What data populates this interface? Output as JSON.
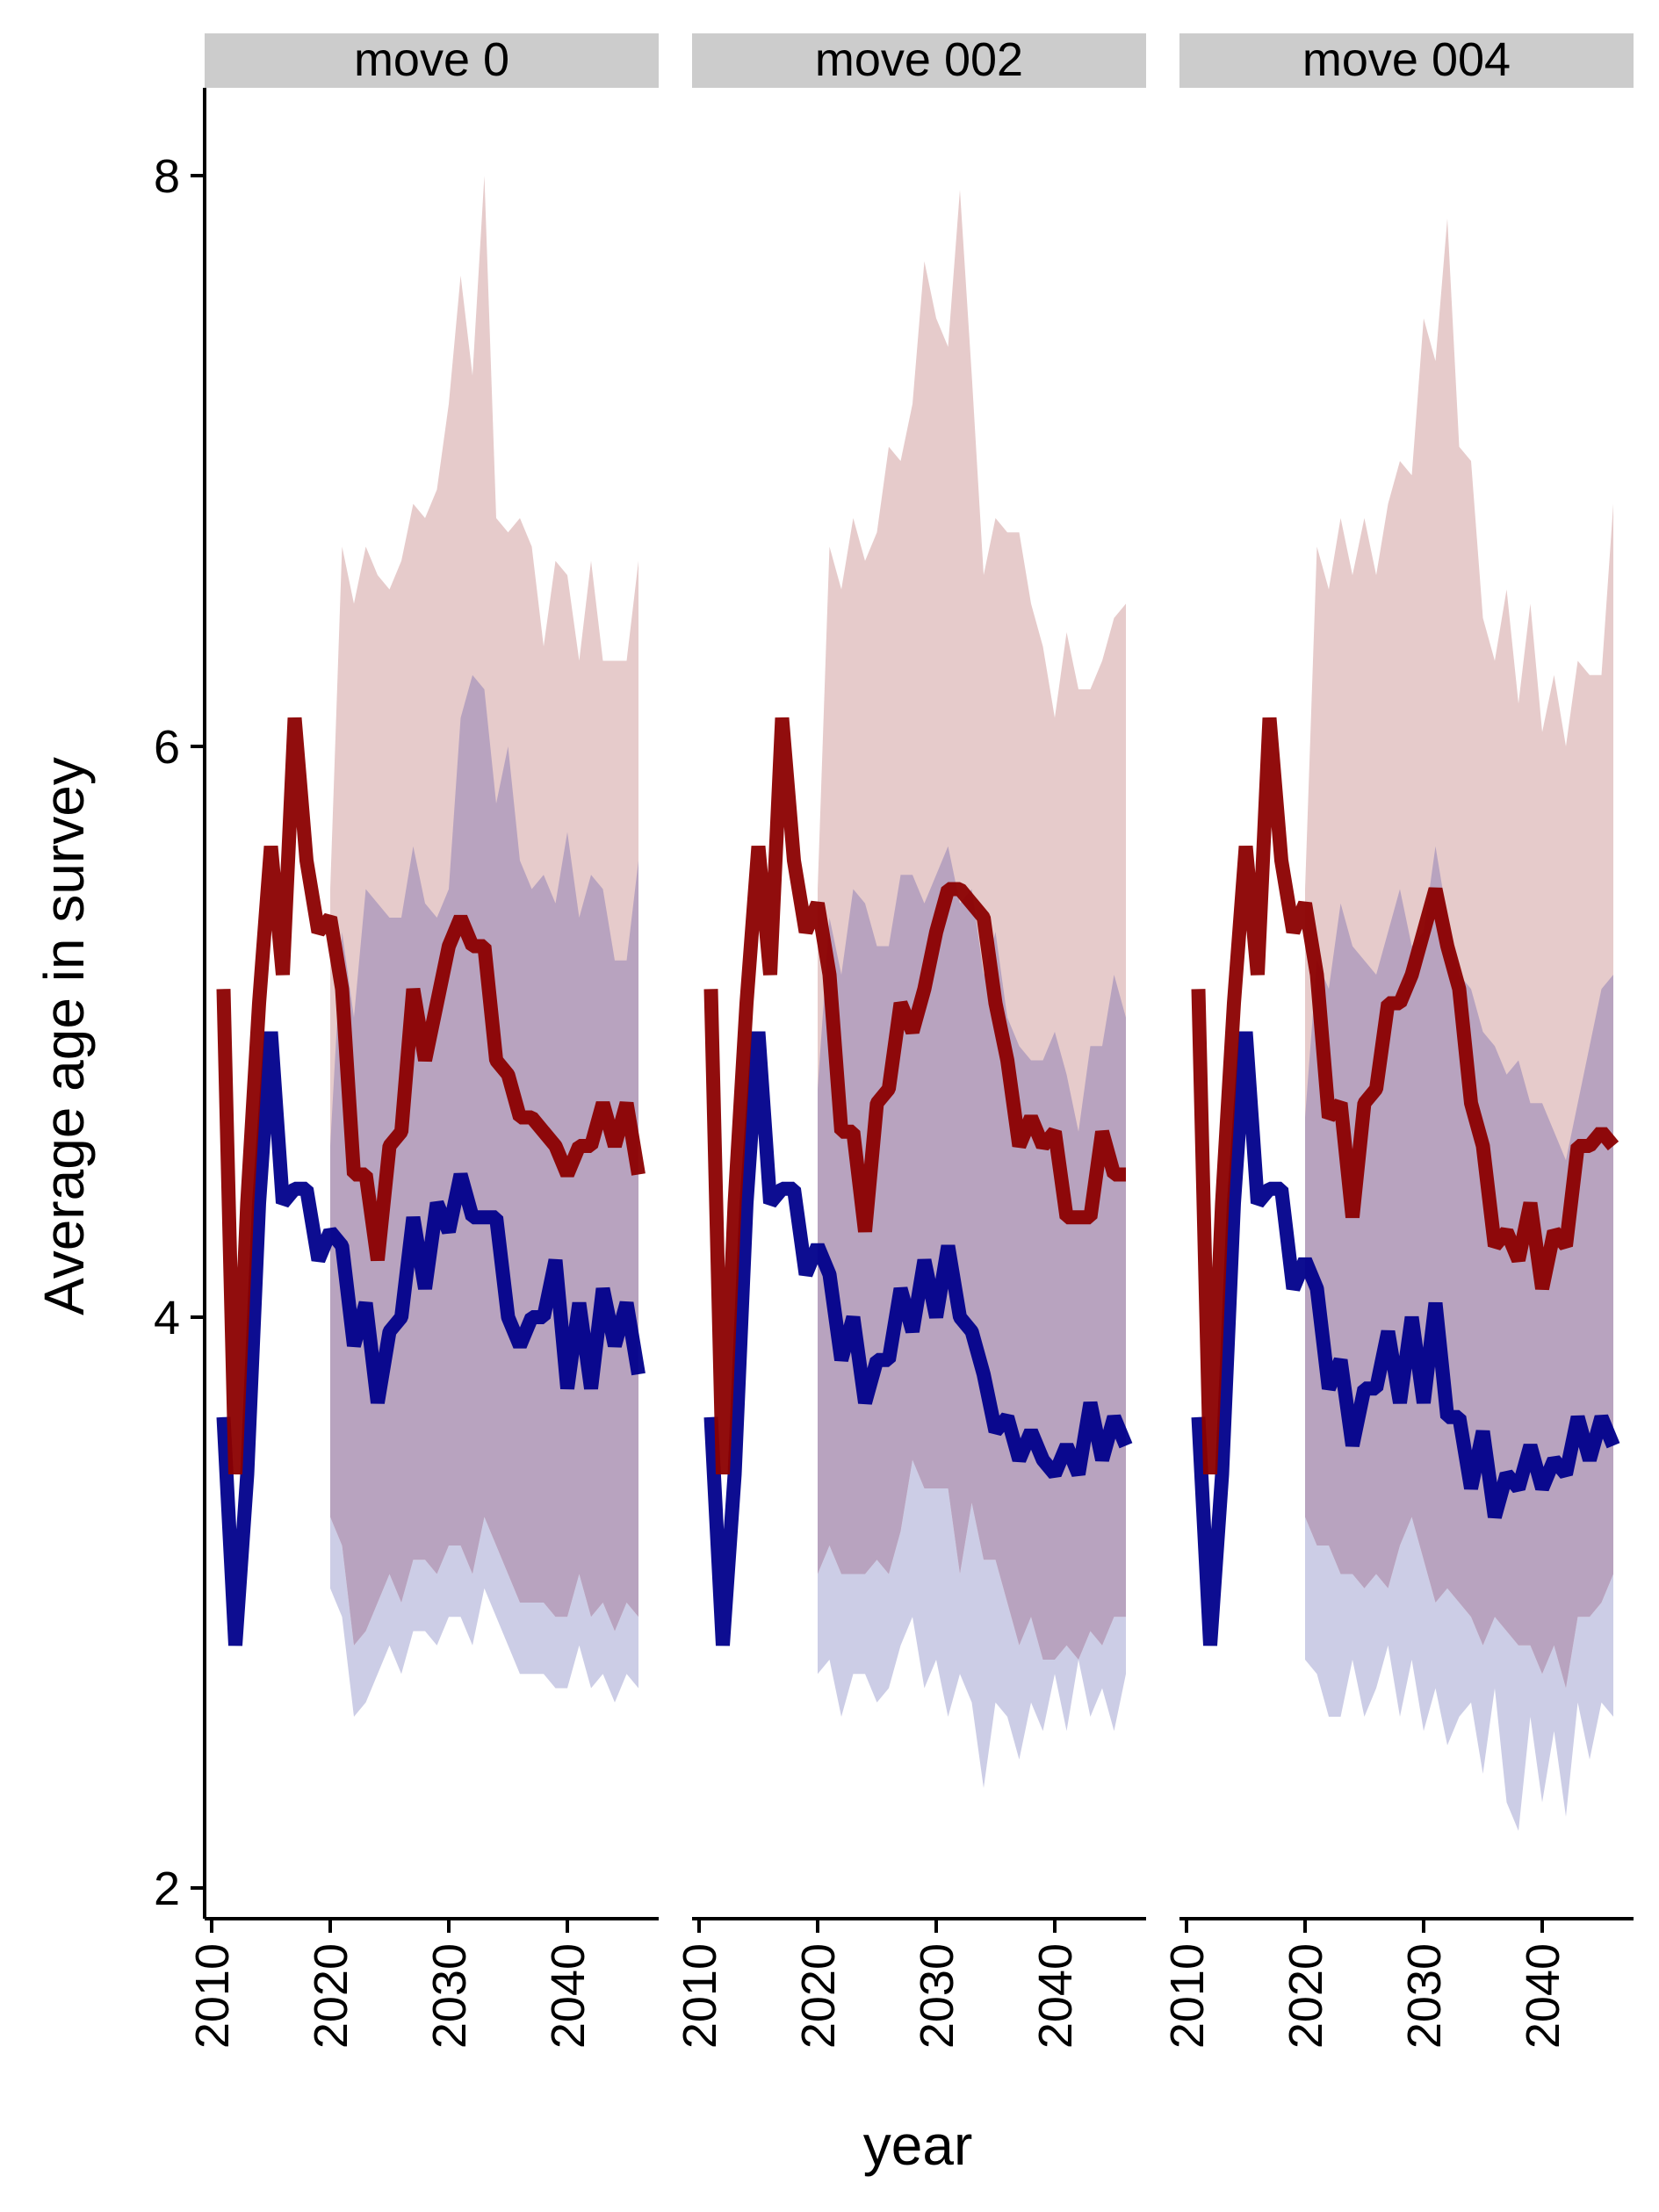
{
  "chart_data": {
    "type": "line",
    "ylabel": "Average age in survey",
    "xlabel": "year",
    "xlim": [
      2010,
      2046
    ],
    "ylim": [
      1.9,
      8.3
    ],
    "x_ticks": [
      2010,
      2020,
      2030,
      2040
    ],
    "y_ticks": [
      2,
      4,
      6,
      8
    ],
    "grid": false,
    "colors": {
      "red_line": "#8b0000",
      "blue_line": "#00008b",
      "red_band": "#e6cbcb",
      "overlap_band": "#b8a3bf",
      "blue_band": "#cccde6",
      "strip": "#cccccc"
    },
    "panels": [
      {
        "label": "move  0",
        "x": [
          2011,
          2012,
          2013,
          2014,
          2015,
          2016,
          2017,
          2018,
          2019,
          2020,
          2021,
          2022,
          2023,
          2024,
          2025,
          2026,
          2027,
          2028,
          2029,
          2030,
          2031,
          2032,
          2033,
          2034,
          2035,
          2036,
          2037,
          2038,
          2039,
          2040,
          2041,
          2042,
          2043,
          2044,
          2045,
          2046
        ],
        "series": [
          {
            "values": [
              5.15,
              3.45,
              4.4,
              5.1,
              5.65,
              5.2,
              6.1,
              5.6,
              5.35,
              5.4,
              5.15,
              4.5,
              4.5,
              4.2,
              4.6,
              4.65,
              5.15,
              4.9,
              5.1,
              5.3,
              5.4,
              5.3,
              5.3,
              4.9,
              4.85,
              4.7,
              4.7,
              4.65,
              4.6,
              4.5,
              4.6,
              4.6,
              4.75,
              4.6,
              4.75,
              4.5
            ]
          },
          {
            "values": [
              3.65,
              2.85,
              3.45,
              4.4,
              5.0,
              4.4,
              4.45,
              4.45,
              4.2,
              4.3,
              4.25,
              3.9,
              4.05,
              3.7,
              3.95,
              4.0,
              4.35,
              4.1,
              4.4,
              4.3,
              4.5,
              4.35,
              4.35,
              4.35,
              4.0,
              3.9,
              4.0,
              4.0,
              4.2,
              3.75,
              4.05,
              3.75,
              4.1,
              3.9,
              4.05,
              3.8
            ]
          }
        ],
        "red_band": {
          "x": [
            2020,
            2021,
            2022,
            2023,
            2024,
            2025,
            2026,
            2027,
            2028,
            2029,
            2030,
            2031,
            2032,
            2033,
            2034,
            2035,
            2036,
            2037,
            2038,
            2039,
            2040,
            2041,
            2042,
            2043,
            2044,
            2045,
            2046
          ],
          "upper": [
            5.5,
            6.7,
            6.5,
            6.7,
            6.6,
            6.55,
            6.65,
            6.85,
            6.8,
            6.9,
            7.2,
            7.65,
            7.3,
            8.0,
            6.8,
            6.75,
            6.8,
            6.7,
            6.35,
            6.65,
            6.6,
            6.3,
            6.65,
            6.3,
            6.3,
            6.3,
            6.65
          ],
          "lower": [
            3.3,
            3.2,
            2.85,
            2.9,
            3.0,
            3.1,
            3.0,
            3.15,
            3.15,
            3.1,
            3.2,
            3.2,
            3.1,
            3.3,
            3.2,
            3.1,
            3.0,
            3.0,
            3.0,
            2.95,
            2.95,
            3.1,
            2.95,
            3.0,
            2.9,
            3.0,
            2.95
          ]
        },
        "blue_band": {
          "x": [
            2020,
            2021,
            2022,
            2023,
            2024,
            2025,
            2026,
            2027,
            2028,
            2029,
            2030,
            2031,
            2032,
            2033,
            2034,
            2035,
            2036,
            2037,
            2038,
            2039,
            2040,
            2041,
            2042,
            2043,
            2044,
            2045,
            2046
          ],
          "upper": [
            4.6,
            5.35,
            5.05,
            5.5,
            5.45,
            5.4,
            5.4,
            5.65,
            5.45,
            5.4,
            5.5,
            6.1,
            6.25,
            6.2,
            5.8,
            6.0,
            5.6,
            5.5,
            5.55,
            5.45,
            5.7,
            5.4,
            5.55,
            5.5,
            5.25,
            5.25,
            5.6
          ]
        }
      },
      {
        "label": "move  002",
        "x": [
          2011,
          2012,
          2013,
          2014,
          2015,
          2016,
          2017,
          2018,
          2019,
          2020,
          2021,
          2022,
          2023,
          2024,
          2025,
          2026,
          2027,
          2028,
          2029,
          2030,
          2031,
          2032,
          2033,
          2034,
          2035,
          2036,
          2037,
          2038,
          2039,
          2040,
          2041,
          2042,
          2043,
          2044,
          2045,
          2046
        ],
        "series": [
          {
            "values": [
              5.15,
              3.45,
              4.4,
              5.1,
              5.65,
              5.2,
              6.1,
              5.6,
              5.35,
              5.45,
              5.2,
              4.65,
              4.65,
              4.3,
              4.75,
              4.8,
              5.1,
              5.0,
              5.15,
              5.35,
              5.5,
              5.5,
              5.45,
              5.4,
              5.1,
              4.9,
              4.6,
              4.7,
              4.6,
              4.65,
              4.35,
              4.35,
              4.35,
              4.65,
              4.5,
              4.5
            ]
          },
          {
            "values": [
              3.65,
              2.85,
              3.45,
              4.4,
              5.0,
              4.4,
              4.45,
              4.45,
              4.15,
              4.25,
              4.15,
              3.85,
              4.0,
              3.7,
              3.85,
              3.85,
              4.1,
              3.95,
              4.2,
              4.0,
              4.25,
              4.0,
              3.95,
              3.8,
              3.6,
              3.65,
              3.5,
              3.6,
              3.5,
              3.45,
              3.55,
              3.45,
              3.7,
              3.5,
              3.65,
              3.55
            ]
          }
        ],
        "red_band": {
          "x": [
            2020,
            2021,
            2022,
            2023,
            2024,
            2025,
            2026,
            2027,
            2028,
            2029,
            2030,
            2031,
            2032,
            2033,
            2034,
            2035,
            2036,
            2037,
            2038,
            2039,
            2040,
            2041,
            2042,
            2043,
            2044,
            2045,
            2046
          ],
          "upper": [
            5.5,
            6.7,
            6.55,
            6.8,
            6.65,
            6.75,
            7.05,
            7.0,
            7.2,
            7.7,
            7.5,
            7.4,
            7.95,
            7.3,
            6.6,
            6.8,
            6.75,
            6.75,
            6.5,
            6.35,
            6.1,
            6.4,
            6.2,
            6.2,
            6.3,
            6.45,
            6.5
          ]
        },
        "blue_band": {
          "x": [
            2020,
            2021,
            2022,
            2023,
            2024,
            2025,
            2026,
            2027,
            2028,
            2029,
            2030,
            2031,
            2032,
            2033,
            2034,
            2035,
            2036,
            2037,
            2038,
            2039,
            2040,
            2041,
            2042,
            2043,
            2044,
            2045,
            2046
          ],
          "upper": [
            4.8,
            5.4,
            5.2,
            5.5,
            5.45,
            5.3,
            5.3,
            5.55,
            5.55,
            5.45,
            5.55,
            5.65,
            5.45,
            5.5,
            5.2,
            5.35,
            5.05,
            4.95,
            4.9,
            4.9,
            5.0,
            4.85,
            4.65,
            4.95,
            4.95,
            5.2,
            5.05
          ],
          "lower": [
            3.1,
            3.2,
            3.1,
            3.1,
            3.1,
            3.15,
            3.1,
            3.25,
            3.5,
            3.4,
            3.4,
            3.4,
            3.1,
            3.35,
            3.15,
            3.15,
            3.0,
            2.85,
            2.95,
            2.8,
            2.8,
            2.85,
            2.8,
            2.9,
            2.85,
            2.95,
            2.95
          ],
          "lower_blue": [
            2.75,
            2.8,
            2.6,
            2.75,
            2.75,
            2.65,
            2.7,
            2.85,
            2.95,
            2.7,
            2.8,
            2.6,
            2.75,
            2.65,
            2.35,
            2.65,
            2.6,
            2.45,
            2.65,
            2.55,
            2.75,
            2.55,
            2.8,
            2.6,
            2.7,
            2.55,
            2.75
          ]
        }
      },
      {
        "label": "move  004",
        "x": [
          2011,
          2012,
          2013,
          2014,
          2015,
          2016,
          2017,
          2018,
          2019,
          2020,
          2021,
          2022,
          2023,
          2024,
          2025,
          2026,
          2027,
          2028,
          2029,
          2030,
          2031,
          2032,
          2033,
          2034,
          2035,
          2036,
          2037,
          2038,
          2039,
          2040,
          2041,
          2042,
          2043,
          2044,
          2045,
          2046
        ],
        "series": [
          {
            "values": [
              5.15,
              3.45,
              4.4,
              5.1,
              5.65,
              5.2,
              6.1,
              5.6,
              5.35,
              5.45,
              5.2,
              4.7,
              4.75,
              4.35,
              4.75,
              4.8,
              5.1,
              5.1,
              5.2,
              5.35,
              5.5,
              5.3,
              5.15,
              4.75,
              4.6,
              4.25,
              4.3,
              4.2,
              4.4,
              4.1,
              4.3,
              4.25,
              4.6,
              4.6,
              4.65,
              4.6
            ]
          },
          {
            "values": [
              3.65,
              2.85,
              3.45,
              4.4,
              5.0,
              4.4,
              4.45,
              4.45,
              4.1,
              4.2,
              4.1,
              3.75,
              3.85,
              3.55,
              3.75,
              3.75,
              3.95,
              3.7,
              4.0,
              3.7,
              4.05,
              3.65,
              3.65,
              3.4,
              3.6,
              3.3,
              3.45,
              3.4,
              3.55,
              3.4,
              3.5,
              3.45,
              3.65,
              3.5,
              3.65,
              3.55
            ]
          }
        ],
        "red_band": {
          "x": [
            2020,
            2021,
            2022,
            2023,
            2024,
            2025,
            2026,
            2027,
            2028,
            2029,
            2030,
            2031,
            2032,
            2033,
            2034,
            2035,
            2036,
            2037,
            2038,
            2039,
            2040,
            2041,
            2042,
            2043,
            2044,
            2045,
            2046
          ],
          "upper": [
            5.5,
            6.7,
            6.55,
            6.8,
            6.6,
            6.8,
            6.6,
            6.85,
            7.0,
            6.95,
            7.5,
            7.35,
            7.85,
            7.05,
            7.0,
            6.45,
            6.3,
            6.55,
            6.15,
            6.5,
            6.05,
            6.25,
            6.0,
            6.3,
            6.25,
            6.25,
            6.85
          ],
          "lower": [
            3.3,
            3.2,
            3.2,
            3.1,
            3.1,
            3.05,
            3.1,
            3.05,
            3.2,
            3.3,
            3.15,
            3.0,
            3.05,
            3.0,
            2.95,
            2.85,
            2.95,
            2.9,
            2.85,
            2.85,
            2.75,
            2.85,
            2.7,
            2.95,
            2.95,
            3.0,
            3.1
          ]
        },
        "blue_band": {
          "x": [
            2020,
            2021,
            2022,
            2023,
            2024,
            2025,
            2026,
            2027,
            2028,
            2029,
            2030,
            2031,
            2032,
            2033,
            2034,
            2035,
            2036,
            2037,
            2038,
            2039,
            2040,
            2041,
            2042,
            2043,
            2044,
            2045,
            2046
          ],
          "upper": [
            4.7,
            5.25,
            5.15,
            5.45,
            5.3,
            5.25,
            5.2,
            5.35,
            5.5,
            5.3,
            5.35,
            5.65,
            5.4,
            5.2,
            5.15,
            5.0,
            4.95,
            4.85,
            4.9,
            4.75,
            4.75,
            4.65,
            4.55,
            4.75,
            4.95,
            5.15,
            5.2
          ],
          "lower_blue": [
            2.8,
            2.75,
            2.6,
            2.6,
            2.8,
            2.6,
            2.7,
            2.85,
            2.6,
            2.8,
            2.55,
            2.7,
            2.5,
            2.6,
            2.65,
            2.4,
            2.7,
            2.3,
            2.2,
            2.6,
            2.3,
            2.55,
            2.25,
            2.65,
            2.45,
            2.65,
            2.6
          ]
        }
      }
    ]
  }
}
